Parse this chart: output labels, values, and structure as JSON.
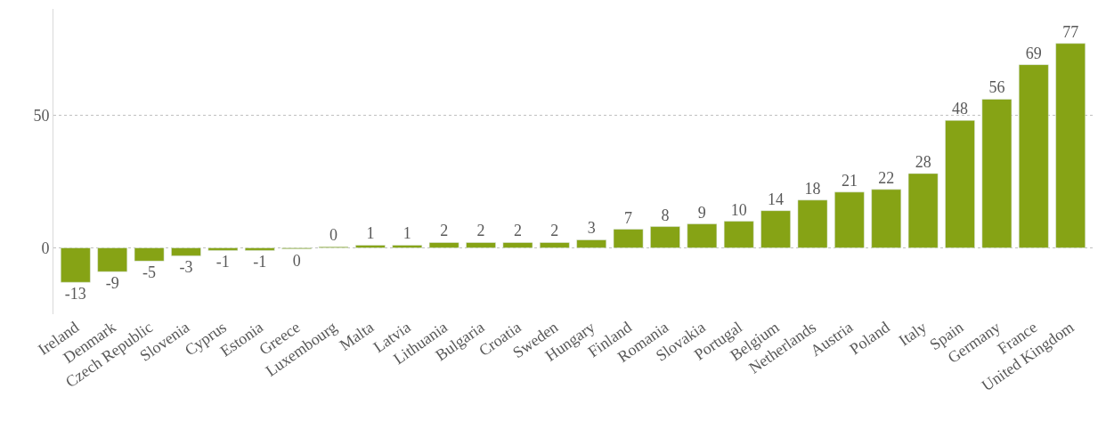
{
  "chart_data": {
    "type": "bar",
    "categories": [
      "Ireland",
      "Denmark",
      "Czech Republic",
      "Slovenia",
      "Cyprus",
      "Estonia",
      "Greece",
      "Luxembourg",
      "Malta",
      "Latvia",
      "Lithuania",
      "Bulgaria",
      "Croatia",
      "Sweden",
      "Hungary",
      "Finland",
      "Romania",
      "Slovakia",
      "Portugal",
      "Belgium",
      "Netherlands",
      "Austria",
      "Poland",
      "Italy",
      "Spain",
      "Germany",
      "France",
      "United Kingdom"
    ],
    "values": [
      -13,
      -9,
      -5,
      -3,
      -1,
      -1,
      -0.4,
      0.4,
      1,
      1,
      2,
      2,
      2,
      2,
      3,
      7,
      8,
      9,
      10,
      14,
      18,
      21,
      22,
      28,
      48,
      56,
      69,
      77
    ],
    "value_labels": [
      "-13",
      "-9",
      "-5",
      "-3",
      "-1",
      "-1",
      "0",
      "0",
      "1",
      "1",
      "2",
      "2",
      "2",
      "2",
      "3",
      "7",
      "8",
      "9",
      "10",
      "14",
      "18",
      "21",
      "22",
      "28",
      "48",
      "56",
      "69",
      "77"
    ],
    "color": "#86a315",
    "ylim": [
      -25,
      90
    ],
    "yticks": [
      0,
      50
    ],
    "grid": "y"
  }
}
